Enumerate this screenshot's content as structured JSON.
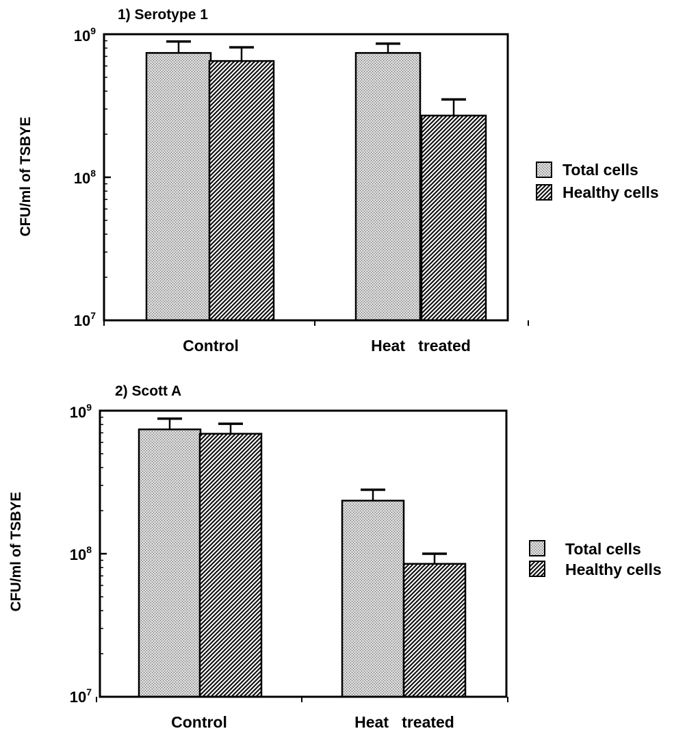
{
  "chart_data": [
    {
      "type": "bar",
      "title": "1) Serotype 1",
      "ylabel": "CFU/ml of TSBYE",
      "yscale": "log",
      "ylim": [
        10000000,
        1000000000
      ],
      "yticks": [
        {
          "base": "10",
          "exp": "7"
        },
        {
          "base": "10",
          "exp": "8"
        },
        {
          "base": "10",
          "exp": "9"
        }
      ],
      "categories": [
        "Control",
        "Heat   treated"
      ],
      "series": [
        {
          "name": "Total cells",
          "values": [
            740000000,
            740000000
          ],
          "errors": [
            890000000,
            860000000
          ]
        },
        {
          "name": "Healthy cells",
          "values": [
            650000000,
            270000000
          ],
          "errors": [
            810000000,
            350000000
          ]
        }
      ],
      "legend": "right",
      "grid": false
    },
    {
      "type": "bar",
      "title": "2) Scott A",
      "ylabel": "CFU/ml of TSBYE",
      "yscale": "log",
      "ylim": [
        10000000,
        1000000000
      ],
      "yticks": [
        {
          "base": "10",
          "exp": "7"
        },
        {
          "base": "10",
          "exp": "8"
        },
        {
          "base": "10",
          "exp": "9"
        }
      ],
      "categories": [
        "Control",
        "Heat   treated"
      ],
      "series": [
        {
          "name": "Total cells",
          "values": [
            740000000,
            235000000
          ],
          "errors": [
            880000000,
            280000000
          ]
        },
        {
          "name": "Healthy cells",
          "values": [
            690000000,
            85000000
          ],
          "errors": [
            810000000,
            100000000
          ]
        }
      ],
      "legend": "right",
      "grid": false
    }
  ]
}
